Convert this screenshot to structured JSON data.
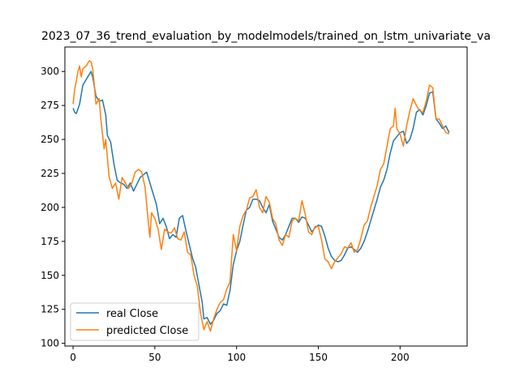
{
  "chart_data": {
    "type": "line",
    "title": "2023_07_36_trend_evaluation_by_modelmodels/trained_on_lstm_univariate_va",
    "xlabel": "",
    "ylabel": "",
    "xlim": [
      -5,
      241
    ],
    "ylim": [
      98,
      318
    ],
    "xticks": [
      0,
      50,
      100,
      150,
      200
    ],
    "yticks": [
      100,
      125,
      150,
      175,
      200,
      225,
      250,
      275,
      300
    ],
    "grid": false,
    "legend_position": "lower-left",
    "series": [
      {
        "name": "real Close",
        "color": "#1f77b4",
        "points": [
          [
            0,
            273
          ],
          [
            1,
            270
          ],
          [
            2,
            269
          ],
          [
            4,
            276
          ],
          [
            6,
            290
          ],
          [
            8,
            294
          ],
          [
            10,
            298
          ],
          [
            11,
            300
          ],
          [
            12,
            296
          ],
          [
            14,
            282
          ],
          [
            16,
            278
          ],
          [
            18,
            279
          ],
          [
            20,
            268
          ],
          [
            21,
            253
          ],
          [
            23,
            248
          ],
          [
            25,
            232
          ],
          [
            27,
            220
          ],
          [
            29,
            218
          ],
          [
            31,
            217
          ],
          [
            33,
            214
          ],
          [
            35,
            218
          ],
          [
            37,
            212
          ],
          [
            39,
            217
          ],
          [
            41,
            222
          ],
          [
            43,
            224
          ],
          [
            45,
            226
          ],
          [
            47,
            218
          ],
          [
            49,
            210
          ],
          [
            51,
            202
          ],
          [
            53,
            188
          ],
          [
            55,
            192
          ],
          [
            57,
            186
          ],
          [
            59,
            177
          ],
          [
            61,
            180
          ],
          [
            63,
            178
          ],
          [
            65,
            192
          ],
          [
            67,
            194
          ],
          [
            69,
            183
          ],
          [
            71,
            173
          ],
          [
            73,
            163
          ],
          [
            75,
            156
          ],
          [
            77,
            143
          ],
          [
            79,
            130
          ],
          [
            80,
            118
          ],
          [
            82,
            119
          ],
          [
            84,
            114
          ],
          [
            86,
            117
          ],
          [
            88,
            122
          ],
          [
            90,
            124
          ],
          [
            92,
            129
          ],
          [
            94,
            128
          ],
          [
            96,
            139
          ],
          [
            98,
            158
          ],
          [
            100,
            168
          ],
          [
            102,
            175
          ],
          [
            104,
            187
          ],
          [
            106,
            198
          ],
          [
            108,
            200
          ],
          [
            110,
            206
          ],
          [
            112,
            206
          ],
          [
            114,
            205
          ],
          [
            116,
            200
          ],
          [
            118,
            196
          ],
          [
            120,
            202
          ],
          [
            122,
            190
          ],
          [
            124,
            184
          ],
          [
            126,
            178
          ],
          [
            128,
            176
          ],
          [
            130,
            180
          ],
          [
            132,
            186
          ],
          [
            134,
            192
          ],
          [
            136,
            192
          ],
          [
            138,
            189
          ],
          [
            140,
            193
          ],
          [
            142,
            192
          ],
          [
            144,
            187
          ],
          [
            146,
            182
          ],
          [
            148,
            185
          ],
          [
            150,
            187
          ],
          [
            152,
            186
          ],
          [
            154,
            179
          ],
          [
            156,
            170
          ],
          [
            158,
            164
          ],
          [
            160,
            161
          ],
          [
            162,
            160
          ],
          [
            164,
            161
          ],
          [
            166,
            165
          ],
          [
            168,
            170
          ],
          [
            170,
            171
          ],
          [
            172,
            169
          ],
          [
            174,
            167
          ],
          [
            176,
            170
          ],
          [
            178,
            175
          ],
          [
            180,
            182
          ],
          [
            182,
            190
          ],
          [
            184,
            198
          ],
          [
            186,
            206
          ],
          [
            188,
            215
          ],
          [
            190,
            220
          ],
          [
            192,
            228
          ],
          [
            194,
            240
          ],
          [
            196,
            249
          ],
          [
            198,
            252
          ],
          [
            200,
            255
          ],
          [
            202,
            256
          ],
          [
            204,
            247
          ],
          [
            206,
            250
          ],
          [
            208,
            258
          ],
          [
            210,
            270
          ],
          [
            212,
            272
          ],
          [
            214,
            268
          ],
          [
            216,
            275
          ],
          [
            218,
            284
          ],
          [
            220,
            285
          ],
          [
            222,
            265
          ],
          [
            224,
            262
          ],
          [
            226,
            258
          ],
          [
            228,
            260
          ],
          [
            230,
            255
          ]
        ]
      },
      {
        "name": "predicted Close",
        "color": "#ff7f0e",
        "points": [
          [
            0,
            276
          ],
          [
            1,
            287
          ],
          [
            2,
            293
          ],
          [
            3,
            300
          ],
          [
            4,
            304
          ],
          [
            5,
            296
          ],
          [
            6,
            302
          ],
          [
            8,
            304
          ],
          [
            10,
            308
          ],
          [
            11,
            307
          ],
          [
            12,
            302
          ],
          [
            13,
            290
          ],
          [
            14,
            276
          ],
          [
            15,
            278
          ],
          [
            16,
            280
          ],
          [
            17,
            265
          ],
          [
            19,
            243
          ],
          [
            20,
            250
          ],
          [
            22,
            223
          ],
          [
            24,
            214
          ],
          [
            26,
            218
          ],
          [
            28,
            206
          ],
          [
            30,
            222
          ],
          [
            32,
            218
          ],
          [
            34,
            214
          ],
          [
            36,
            218
          ],
          [
            38,
            226
          ],
          [
            40,
            228
          ],
          [
            42,
            226
          ],
          [
            44,
            215
          ],
          [
            46,
            190
          ],
          [
            47,
            178
          ],
          [
            48,
            196
          ],
          [
            50,
            192
          ],
          [
            52,
            184
          ],
          [
            54,
            169
          ],
          [
            56,
            184
          ],
          [
            58,
            182
          ],
          [
            60,
            181
          ],
          [
            62,
            185
          ],
          [
            64,
            177
          ],
          [
            66,
            176
          ],
          [
            68,
            182
          ],
          [
            70,
            167
          ],
          [
            72,
            165
          ],
          [
            74,
            150
          ],
          [
            76,
            142
          ],
          [
            78,
            122
          ],
          [
            80,
            110
          ],
          [
            82,
            116
          ],
          [
            84,
            109
          ],
          [
            86,
            118
          ],
          [
            88,
            125
          ],
          [
            90,
            130
          ],
          [
            92,
            132
          ],
          [
            94,
            140
          ],
          [
            96,
            145
          ],
          [
            98,
            180
          ],
          [
            100,
            168
          ],
          [
            102,
            186
          ],
          [
            104,
            194
          ],
          [
            106,
            198
          ],
          [
            108,
            207
          ],
          [
            110,
            208
          ],
          [
            112,
            213
          ],
          [
            114,
            200
          ],
          [
            116,
            196
          ],
          [
            118,
            208
          ],
          [
            120,
            204
          ],
          [
            122,
            192
          ],
          [
            124,
            188
          ],
          [
            126,
            176
          ],
          [
            128,
            172
          ],
          [
            130,
            180
          ],
          [
            132,
            178
          ],
          [
            134,
            190
          ],
          [
            136,
            192
          ],
          [
            138,
            190
          ],
          [
            140,
            205
          ],
          [
            142,
            195
          ],
          [
            144,
            182
          ],
          [
            146,
            180
          ],
          [
            148,
            186
          ],
          [
            150,
            186
          ],
          [
            152,
            176
          ],
          [
            154,
            162
          ],
          [
            156,
            160
          ],
          [
            158,
            155
          ],
          [
            160,
            160
          ],
          [
            162,
            163
          ],
          [
            164,
            166
          ],
          [
            166,
            171
          ],
          [
            168,
            170
          ],
          [
            170,
            174
          ],
          [
            172,
            167
          ],
          [
            174,
            169
          ],
          [
            176,
            177
          ],
          [
            178,
            187
          ],
          [
            180,
            190
          ],
          [
            182,
            200
          ],
          [
            184,
            208
          ],
          [
            186,
            216
          ],
          [
            188,
            228
          ],
          [
            190,
            232
          ],
          [
            192,
            245
          ],
          [
            194,
            258
          ],
          [
            196,
            260
          ],
          [
            197,
            273
          ],
          [
            198,
            258
          ],
          [
            200,
            254
          ],
          [
            202,
            245
          ],
          [
            204,
            260
          ],
          [
            206,
            271
          ],
          [
            208,
            280
          ],
          [
            210,
            275
          ],
          [
            212,
            271
          ],
          [
            214,
            270
          ],
          [
            216,
            278
          ],
          [
            218,
            290
          ],
          [
            220,
            288
          ],
          [
            222,
            265
          ],
          [
            224,
            265
          ],
          [
            226,
            260
          ],
          [
            228,
            255
          ],
          [
            230,
            254
          ]
        ]
      }
    ]
  }
}
